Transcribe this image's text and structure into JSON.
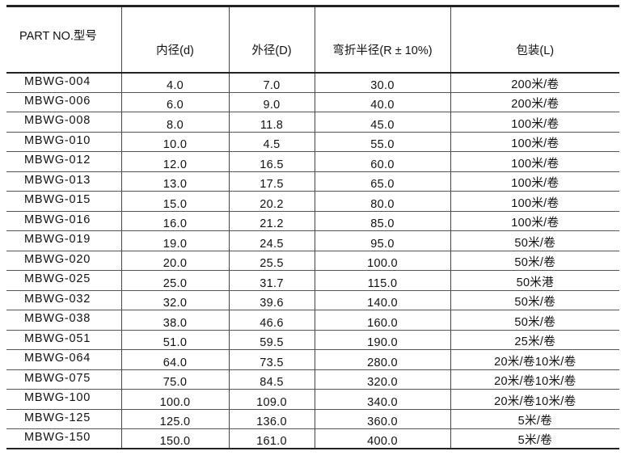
{
  "headers": {
    "part_no": "PART NO.型号",
    "inner": "内径(d)",
    "outer": "外径(D)",
    "bend": "弯折半径(R ± 10%)",
    "pack": "包装(L)"
  },
  "rows": [
    {
      "part": "MBWG-004",
      "inner": "4.0",
      "outer": "7.0",
      "bend": "30.0",
      "pack": "200米/卷"
    },
    {
      "part": "MBWG-006",
      "inner": "6.0",
      "outer": "9.0",
      "bend": "40.0",
      "pack": "200米/卷"
    },
    {
      "part": "MBWG-008",
      "inner": "8.0",
      "outer": "11.8",
      "bend": "45.0",
      "pack": "100米/卷"
    },
    {
      "part": "MBWG-010",
      "inner": "10.0",
      "outer": "4.5",
      "bend": "55.0",
      "pack": "100米/卷"
    },
    {
      "part": "MBWG-012",
      "inner": "12.0",
      "outer": "16.5",
      "bend": "60.0",
      "pack": "100米/卷"
    },
    {
      "part": "MBWG-013",
      "inner": "13.0",
      "outer": "17.5",
      "bend": "65.0",
      "pack": "100米/卷"
    },
    {
      "part": "MBWG-015",
      "inner": "15.0",
      "outer": "20.2",
      "bend": "80.0",
      "pack": "100米/卷"
    },
    {
      "part": "MBWG-016",
      "inner": "16.0",
      "outer": "21.2",
      "bend": "85.0",
      "pack": "100米/卷"
    },
    {
      "part": "MBWG-019",
      "inner": "19.0",
      "outer": "24.5",
      "bend": "95.0",
      "pack": "50米/卷"
    },
    {
      "part": "MBWG-020",
      "inner": "20.0",
      "outer": "25.5",
      "bend": "100.0",
      "pack": "50米/卷"
    },
    {
      "part": "MBWG-025",
      "inner": "25.0",
      "outer": "31.7",
      "bend": "115.0",
      "pack": "50米港"
    },
    {
      "part": "MBWG-032",
      "inner": "32.0",
      "outer": "39.6",
      "bend": "140.0",
      "pack": "50米/卷"
    },
    {
      "part": "MBWG-038",
      "inner": "38.0",
      "outer": "46.6",
      "bend": "160.0",
      "pack": "50米/卷"
    },
    {
      "part": "MBWG-051",
      "inner": "51.0",
      "outer": "59.5",
      "bend": "190.0",
      "pack": "25米/卷"
    },
    {
      "part": "MBWG-064",
      "inner": "64.0",
      "outer": "73.5",
      "bend": "280.0",
      "pack": "20米/卷10米/卷"
    },
    {
      "part": "MBWG-075",
      "inner": "75.0",
      "outer": "84.5",
      "bend": "320.0",
      "pack": "20米/卷10米/卷"
    },
    {
      "part": "MBWG-100",
      "inner": "100.0",
      "outer": "109.0",
      "bend": "340.0",
      "pack": "20米/卷10米/卷"
    },
    {
      "part": "MBWG-125",
      "inner": "125.0",
      "outer": "136.0",
      "bend": "360.0",
      "pack": "5米/卷"
    },
    {
      "part": "MBWG-150",
      "inner": "150.0",
      "outer": "161.0",
      "bend": "400.0",
      "pack": "5米/卷"
    }
  ]
}
